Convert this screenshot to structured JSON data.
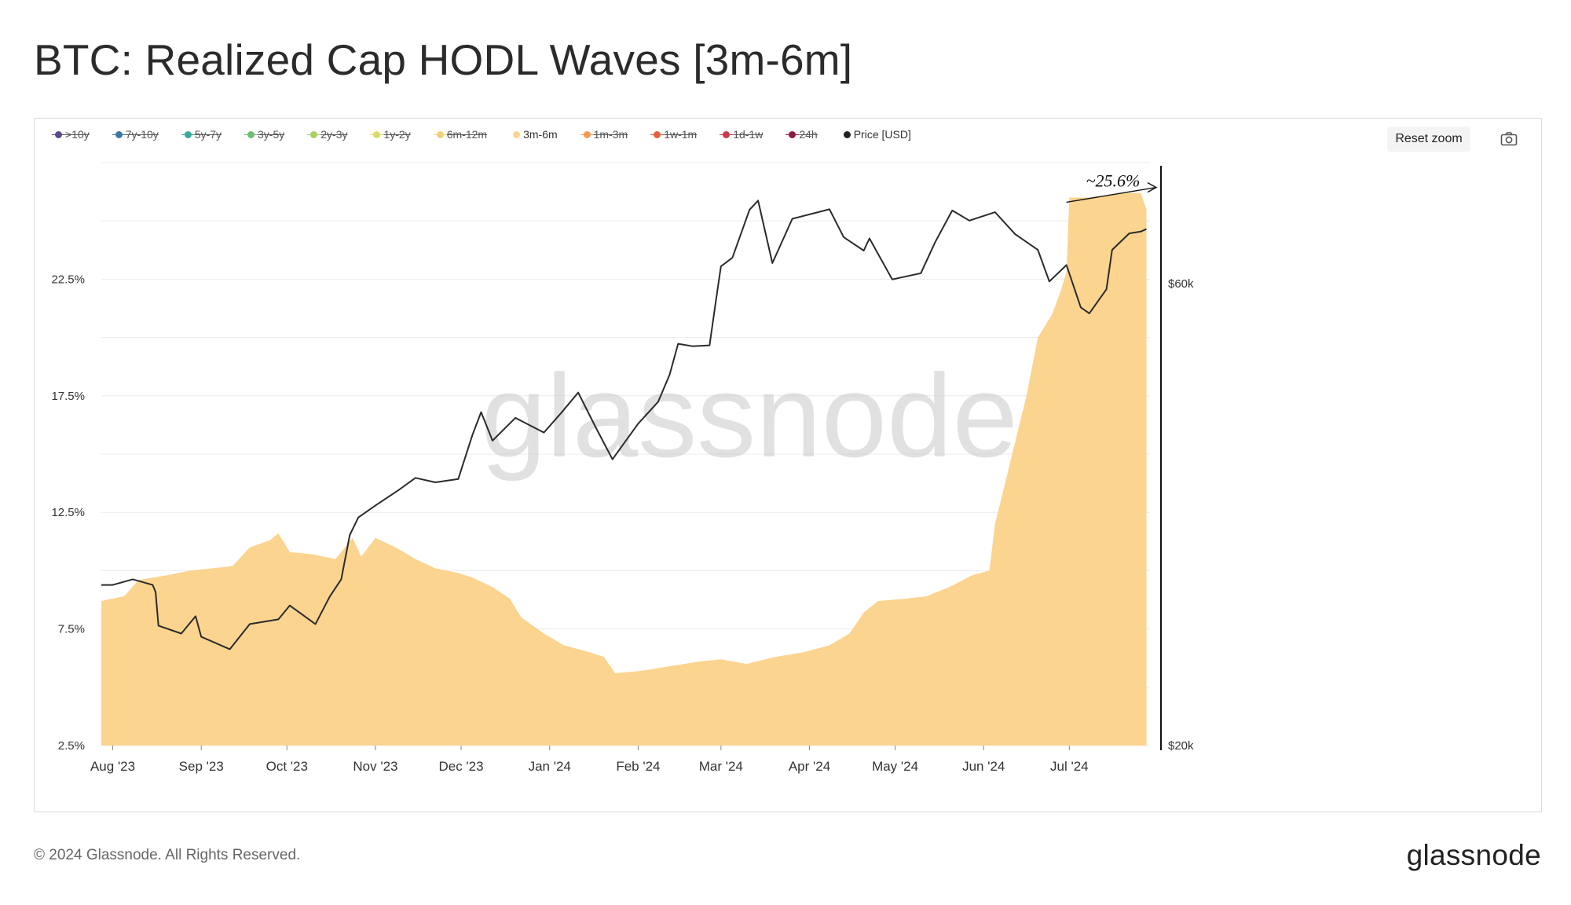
{
  "page": {
    "title": "BTC: Realized Cap HODL Waves [3m-6m]",
    "copyright": "© 2024 Glassnode. All Rights Reserved.",
    "logo_text": "glassnode",
    "watermark": "glassnode"
  },
  "toolbar": {
    "reset_zoom_label": "Reset zoom",
    "camera_icon": "camera-icon"
  },
  "legend": [
    {
      "label": ">10y",
      "color": "#5b4b8a",
      "active": false
    },
    {
      "label": "7y-10y",
      "color": "#3a78a8",
      "active": false
    },
    {
      "label": "5y-7y",
      "color": "#3aa89c",
      "active": false
    },
    {
      "label": "3y-5y",
      "color": "#6fbf73",
      "active": false
    },
    {
      "label": "2y-3y",
      "color": "#a6cf64",
      "active": false
    },
    {
      "label": "1y-2y",
      "color": "#d8dc6a",
      "active": false
    },
    {
      "label": "6m-12m",
      "color": "#efd27a",
      "active": false
    },
    {
      "label": "3m-6m",
      "color": "#fbd48f",
      "active": true
    },
    {
      "label": "1m-3m",
      "color": "#f39a52",
      "active": false
    },
    {
      "label": "1w-1m",
      "color": "#e5603f",
      "active": false
    },
    {
      "label": "1d-1w",
      "color": "#c93a4f",
      "active": false
    },
    {
      "label": "24h",
      "color": "#8c1a3e",
      "active": false
    },
    {
      "label": "Price [USD]",
      "color": "#222222",
      "active": true
    }
  ],
  "chart_data": {
    "type": "area",
    "title": "BTC: Realized Cap HODL Waves [3m-6m]",
    "x_tick_labels": [
      "Aug '23",
      "Sep '23",
      "Oct '23",
      "Nov '23",
      "Dec '23",
      "Jan '24",
      "Feb '24",
      "Mar '24",
      "Apr '24",
      "May '24",
      "Jun '24",
      "Jul '24"
    ],
    "y_left": {
      "tick_labels": [
        "2.5%",
        "7.5%",
        "12.5%",
        "17.5%",
        "22.5%"
      ],
      "ticks": [
        2.5,
        7.5,
        12.5,
        17.5,
        22.5
      ],
      "range": [
        2.5,
        27.5
      ]
    },
    "y_right": {
      "tick_labels": [
        "$20k",
        "$60k"
      ],
      "ticks": [
        20000,
        60000
      ],
      "scale": "log",
      "range": [
        20000,
        80000
      ]
    },
    "x_range": [
      "2023-07-28",
      "2024-08-01"
    ],
    "grid": true,
    "legend_position": "top-left",
    "annotation": {
      "text": "~25.6%",
      "x": "2024-07-26",
      "y": 25.6
    },
    "series": [
      {
        "name": "3m-6m",
        "axis": "left",
        "color": "#fbd48f",
        "points": [
          [
            "2023-07-28",
            8.7
          ],
          [
            "2023-08-05",
            8.9
          ],
          [
            "2023-08-10",
            9.6
          ],
          [
            "2023-08-20",
            9.8
          ],
          [
            "2023-08-28",
            10.0
          ],
          [
            "2023-09-05",
            10.1
          ],
          [
            "2023-09-12",
            10.2
          ],
          [
            "2023-09-18",
            11.0
          ],
          [
            "2023-09-25",
            11.3
          ],
          [
            "2023-09-28",
            11.6
          ],
          [
            "2023-10-02",
            10.8
          ],
          [
            "2023-10-10",
            10.7
          ],
          [
            "2023-10-18",
            10.5
          ],
          [
            "2023-10-24",
            11.4
          ],
          [
            "2023-10-27",
            10.6
          ],
          [
            "2023-11-01",
            11.4
          ],
          [
            "2023-11-08",
            11.0
          ],
          [
            "2023-11-15",
            10.5
          ],
          [
            "2023-11-22",
            10.1
          ],
          [
            "2023-11-30",
            9.9
          ],
          [
            "2023-12-05",
            9.7
          ],
          [
            "2023-12-12",
            9.3
          ],
          [
            "2023-12-18",
            8.8
          ],
          [
            "2023-12-22",
            8.0
          ],
          [
            "2023-12-30",
            7.3
          ],
          [
            "2024-01-06",
            6.8
          ],
          [
            "2024-01-15",
            6.5
          ],
          [
            "2024-01-20",
            6.3
          ],
          [
            "2024-01-24",
            5.6
          ],
          [
            "2024-02-02",
            5.7
          ],
          [
            "2024-02-12",
            5.9
          ],
          [
            "2024-02-22",
            6.1
          ],
          [
            "2024-03-01",
            6.2
          ],
          [
            "2024-03-10",
            6.0
          ],
          [
            "2024-03-20",
            6.3
          ],
          [
            "2024-03-30",
            6.5
          ],
          [
            "2024-04-08",
            6.8
          ],
          [
            "2024-04-15",
            7.3
          ],
          [
            "2024-04-20",
            8.2
          ],
          [
            "2024-04-25",
            8.7
          ],
          [
            "2024-05-05",
            8.8
          ],
          [
            "2024-05-12",
            8.9
          ],
          [
            "2024-05-20",
            9.3
          ],
          [
            "2024-05-28",
            9.8
          ],
          [
            "2024-06-03",
            10.0
          ],
          [
            "2024-06-05",
            12.0
          ],
          [
            "2024-06-08",
            13.5
          ],
          [
            "2024-06-12",
            15.5
          ],
          [
            "2024-06-16",
            17.5
          ],
          [
            "2024-06-20",
            20.0
          ],
          [
            "2024-06-25",
            21.0
          ],
          [
            "2024-06-28",
            22.0
          ],
          [
            "2024-06-30",
            22.8
          ],
          [
            "2024-07-01",
            26.0
          ],
          [
            "2024-07-10",
            26.0
          ],
          [
            "2024-07-20",
            26.2
          ],
          [
            "2024-07-26",
            26.2
          ],
          [
            "2024-07-28",
            25.5
          ]
        ]
      },
      {
        "name": "Price [USD]",
        "axis": "right",
        "color": "#2b2b2b",
        "points": [
          [
            "2023-07-28",
            29300
          ],
          [
            "2023-08-01",
            29300
          ],
          [
            "2023-08-08",
            29700
          ],
          [
            "2023-08-15",
            29300
          ],
          [
            "2023-08-16",
            28800
          ],
          [
            "2023-08-17",
            26600
          ],
          [
            "2023-08-25",
            26100
          ],
          [
            "2023-08-30",
            27200
          ],
          [
            "2023-09-01",
            25900
          ],
          [
            "2023-09-11",
            25150
          ],
          [
            "2023-09-18",
            26700
          ],
          [
            "2023-09-28",
            27000
          ],
          [
            "2023-10-02",
            27900
          ],
          [
            "2023-10-11",
            26700
          ],
          [
            "2023-10-16",
            28500
          ],
          [
            "2023-10-20",
            29700
          ],
          [
            "2023-10-23",
            33000
          ],
          [
            "2023-10-26",
            34400
          ],
          [
            "2023-11-01",
            35400
          ],
          [
            "2023-11-09",
            36700
          ],
          [
            "2023-11-15",
            37800
          ],
          [
            "2023-11-22",
            37400
          ],
          [
            "2023-11-30",
            37700
          ],
          [
            "2023-12-05",
            41900
          ],
          [
            "2023-12-08",
            44200
          ],
          [
            "2023-12-12",
            41300
          ],
          [
            "2023-12-20",
            43600
          ],
          [
            "2023-12-30",
            42100
          ],
          [
            "2024-01-05",
            44100
          ],
          [
            "2024-01-11",
            46300
          ],
          [
            "2024-01-17",
            42700
          ],
          [
            "2024-01-23",
            39500
          ],
          [
            "2024-02-01",
            43000
          ],
          [
            "2024-02-08",
            45300
          ],
          [
            "2024-02-12",
            48300
          ],
          [
            "2024-02-15",
            52000
          ],
          [
            "2024-02-20",
            51700
          ],
          [
            "2024-02-26",
            51800
          ],
          [
            "2024-02-28",
            57000
          ],
          [
            "2024-03-01",
            62500
          ],
          [
            "2024-03-05",
            63800
          ],
          [
            "2024-03-11",
            71500
          ],
          [
            "2024-03-14",
            73100
          ],
          [
            "2024-03-19",
            63000
          ],
          [
            "2024-03-26",
            70000
          ],
          [
            "2024-04-08",
            71600
          ],
          [
            "2024-04-13",
            67000
          ],
          [
            "2024-04-20",
            64900
          ],
          [
            "2024-04-22",
            66800
          ],
          [
            "2024-04-30",
            60600
          ],
          [
            "2024-05-10",
            61500
          ],
          [
            "2024-05-15",
            66200
          ],
          [
            "2024-05-21",
            71400
          ],
          [
            "2024-05-27",
            69700
          ],
          [
            "2024-06-05",
            71100
          ],
          [
            "2024-06-12",
            67500
          ],
          [
            "2024-06-20",
            65000
          ],
          [
            "2024-06-24",
            60300
          ],
          [
            "2024-06-30",
            62700
          ],
          [
            "2024-07-05",
            56700
          ],
          [
            "2024-07-08",
            55900
          ],
          [
            "2024-07-14",
            59200
          ],
          [
            "2024-07-16",
            65000
          ],
          [
            "2024-07-22",
            67600
          ],
          [
            "2024-07-26",
            67900
          ],
          [
            "2024-07-28",
            68300
          ]
        ]
      }
    ]
  }
}
